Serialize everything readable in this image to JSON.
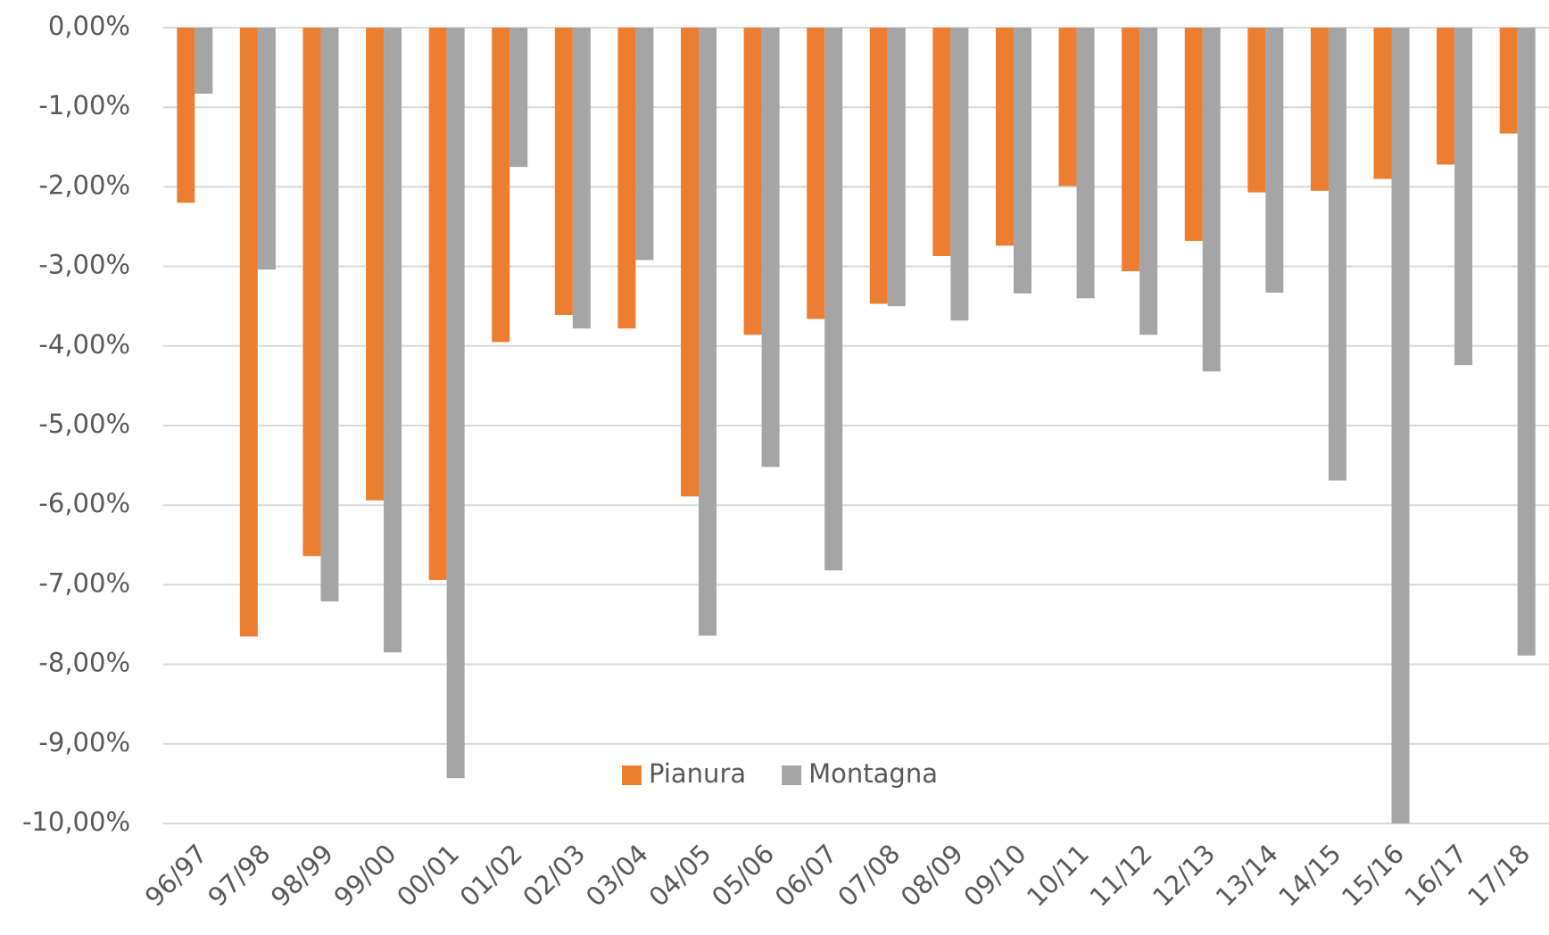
{
  "chart_data": {
    "type": "bar",
    "categories": [
      "96/97",
      "97/98",
      "98/99",
      "99/00",
      "00/01",
      "01/02",
      "02/03",
      "03/04",
      "04/05",
      "05/06",
      "06/07",
      "07/08",
      "08/09",
      "09/10",
      "10/11",
      "11/12",
      "12/13",
      "13/14",
      "14/15",
      "15/16",
      "16/17",
      "17/18"
    ],
    "series": [
      {
        "name": "Pianura",
        "color": "#ed7d31",
        "values": [
          -2.2,
          -7.65,
          -6.64,
          -5.94,
          -6.94,
          -3.95,
          -3.61,
          -3.78,
          -5.89,
          -3.86,
          -3.66,
          -3.47,
          -2.87,
          -2.74,
          -1.99,
          -3.06,
          -2.68,
          -2.07,
          -2.05,
          -1.9,
          -1.72,
          -1.33
        ]
      },
      {
        "name": "Montagna",
        "color": "#a5a5a5",
        "values": [
          -0.83,
          -3.04,
          -7.21,
          -7.85,
          -9.43,
          -1.75,
          -3.78,
          -2.92,
          -7.64,
          -5.52,
          -6.82,
          -3.5,
          -3.68,
          -3.34,
          -3.4,
          -3.86,
          -4.32,
          -3.33,
          -5.69,
          -10.0,
          -4.24,
          -7.89
        ]
      }
    ],
    "ylim": [
      -10,
      0
    ],
    "yticks": [
      {
        "value": 0,
        "label": "0,00%"
      },
      {
        "value": -1,
        "label": "-1,00%"
      },
      {
        "value": -2,
        "label": "-2,00%"
      },
      {
        "value": -3,
        "label": "-3,00%"
      },
      {
        "value": -4,
        "label": "-4,00%"
      },
      {
        "value": -5,
        "label": "-5,00%"
      },
      {
        "value": -6,
        "label": "-6,00%"
      },
      {
        "value": -7,
        "label": "-7,00%"
      },
      {
        "value": -8,
        "label": "-8,00%"
      },
      {
        "value": -9,
        "label": "-9,00%"
      },
      {
        "value": -10,
        "label": "-10,00%"
      }
    ],
    "grid": true,
    "legend": "bottom"
  }
}
